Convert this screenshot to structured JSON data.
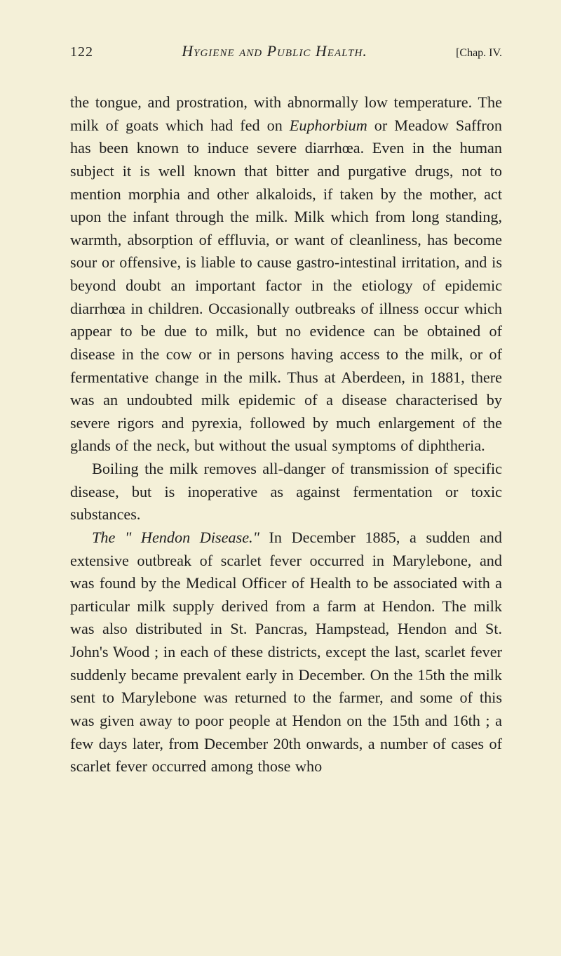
{
  "page": {
    "number": "122",
    "title": "Hygiene and Public Health.",
    "chapter": "[Chap. IV."
  },
  "body": {
    "p1": "the tongue, and prostration, with abnormally low temperature. The milk of goats which had fed on ",
    "p1_it": "Euphorbium",
    "p1b": " or Meadow Saffron has been known to induce severe diarrhœa. Even in the human subject it is well known that bitter and purgative drugs, not to mention morphia and other alkaloids, if taken by the mother, act upon the infant through the milk. Milk which from long standing, warmth, absorption of effluvia, or want of cleanliness, has become sour or offensive, is liable to cause gastro-intestinal irritation, and is beyond doubt an important factor in the etiology of epidemic diarrhœa in children. Occasionally out­breaks of illness occur which appear to be due to milk, but no evidence can be obtained of disease in the cow or in persons having access to the milk, or of fermen­tative change in the milk. Thus at Aberdeen, in 1881, there was an undoubted milk epidemic of a disease characterised by severe rigors and pyrexia, followed by much enlargement of the glands of the neck, but without the usual symptoms of diphtheria.",
    "p2": "Boiling the milk removes all-danger of transmission of specific disease, but is inoperative as against fer­mentation or toxic substances.",
    "p3_it": "The \" Hendon Disease.\"",
    "p3": " In December 1885, a sudden and extensive outbreak of scarlet fever occurred in Marylebone, and was found by the Medical Officer of Health to be associated with a particular milk supply derived from a farm at Hendon. The milk was also distributed in St. Pancras, Hampstead, Hendon and St. John's Wood ; in each of these districts, except the last, scarlet fever suddenly became prevalent early in December. On the 15th the milk sent to Marylebone was returned to the farmer, and some of this was given away to poor people at Hendon on the 15th and 16th ; a few days later, from December 20th onwards, a number of cases of scarlet fever occurred among those who"
  },
  "style": {
    "background_color": "#f4f0d8",
    "text_color": "#1e1e1e",
    "body_fontsize": 22.2,
    "header_fontsize": 22,
    "line_height": 1.47,
    "font_family": "Georgia, Times New Roman, serif"
  }
}
